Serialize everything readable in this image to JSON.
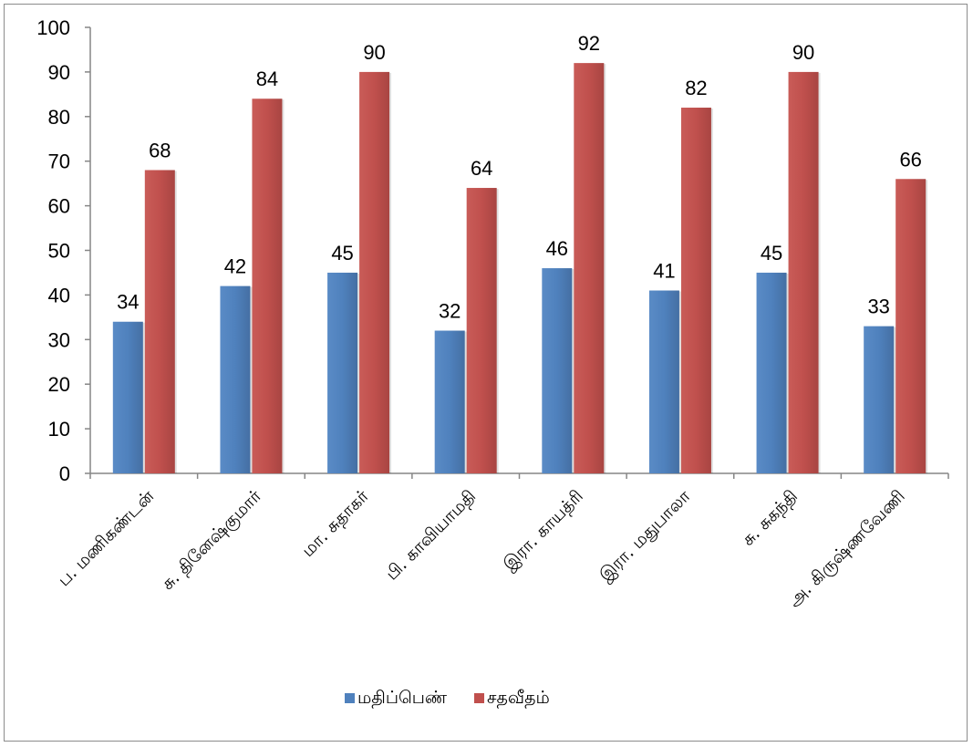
{
  "chart_data": {
    "type": "bar",
    "title": "",
    "xlabel": "",
    "ylabel": "",
    "categories": [
      "ப. மணிகண்டன்",
      "சு. தினேஷ்குமார்",
      "மா. சுதாகர்",
      "பி. காவியாமதி",
      "இரா. காயத்ரி",
      "இரா. மதுபாலா",
      "சு. சுகந்தி",
      "அ. கிருஷ்ணவேணி"
    ],
    "series": [
      {
        "name": "மதிப்பெண்",
        "color": "#4F81BD",
        "values": [
          34,
          42,
          45,
          32,
          46,
          41,
          45,
          33
        ]
      },
      {
        "name": "சதவீதம்",
        "color": "#C0504D",
        "values": [
          68,
          84,
          90,
          64,
          92,
          82,
          90,
          66
        ]
      }
    ],
    "ylim": [
      0,
      100
    ],
    "yticks": [
      0,
      10,
      20,
      30,
      40,
      50,
      60,
      70,
      80,
      90,
      100
    ],
    "data_labels": true,
    "grid": false,
    "legend_position": "bottom"
  }
}
